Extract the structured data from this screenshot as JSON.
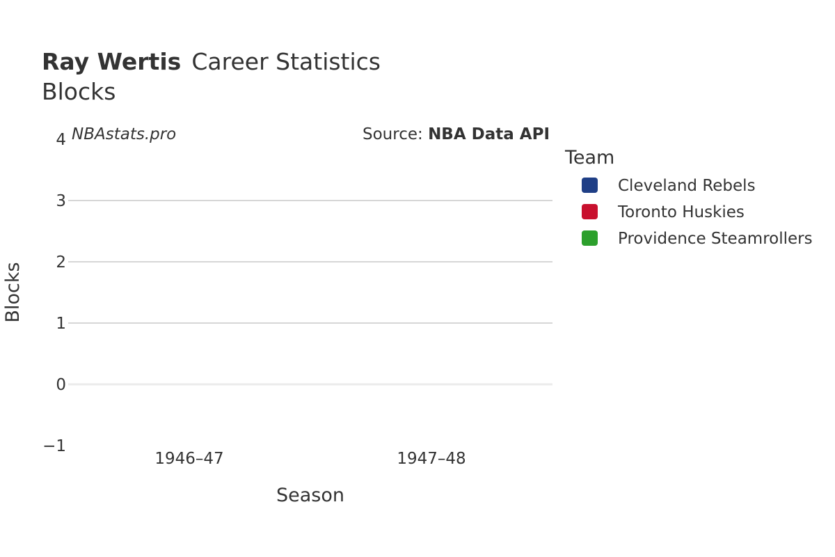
{
  "header": {
    "player_name": "Ray Wertis",
    "title_suffix": "Career Statistics",
    "subtitle": "Blocks"
  },
  "watermark": "NBAstats.pro",
  "source": {
    "prefix": "Source: ",
    "name": "NBA Data API"
  },
  "legend": {
    "title": "Team",
    "items": [
      {
        "label": "Cleveland Rebels",
        "color": "#1f3f86"
      },
      {
        "label": "Toronto Huskies",
        "color": "#c8102e"
      },
      {
        "label": "Providence Steamrollers",
        "color": "#2ca02c"
      }
    ]
  },
  "chart_data": {
    "type": "bar",
    "title": "Ray Wertis Career Statistics",
    "subtitle": "Blocks",
    "xlabel": "Season",
    "ylabel": "Blocks",
    "categories": [
      "1946–47",
      "1947–48"
    ],
    "ylim": [
      -1,
      4
    ],
    "yticks": [
      "−1",
      "0",
      "1",
      "2",
      "3",
      "4"
    ],
    "series": [
      {
        "name": "Cleveland Rebels",
        "values": [
          null,
          null
        ]
      },
      {
        "name": "Toronto Huskies",
        "values": [
          null,
          null
        ]
      },
      {
        "name": "Providence Steamrollers",
        "values": [
          null,
          null
        ]
      }
    ],
    "grid": true,
    "legend_position": "right"
  }
}
